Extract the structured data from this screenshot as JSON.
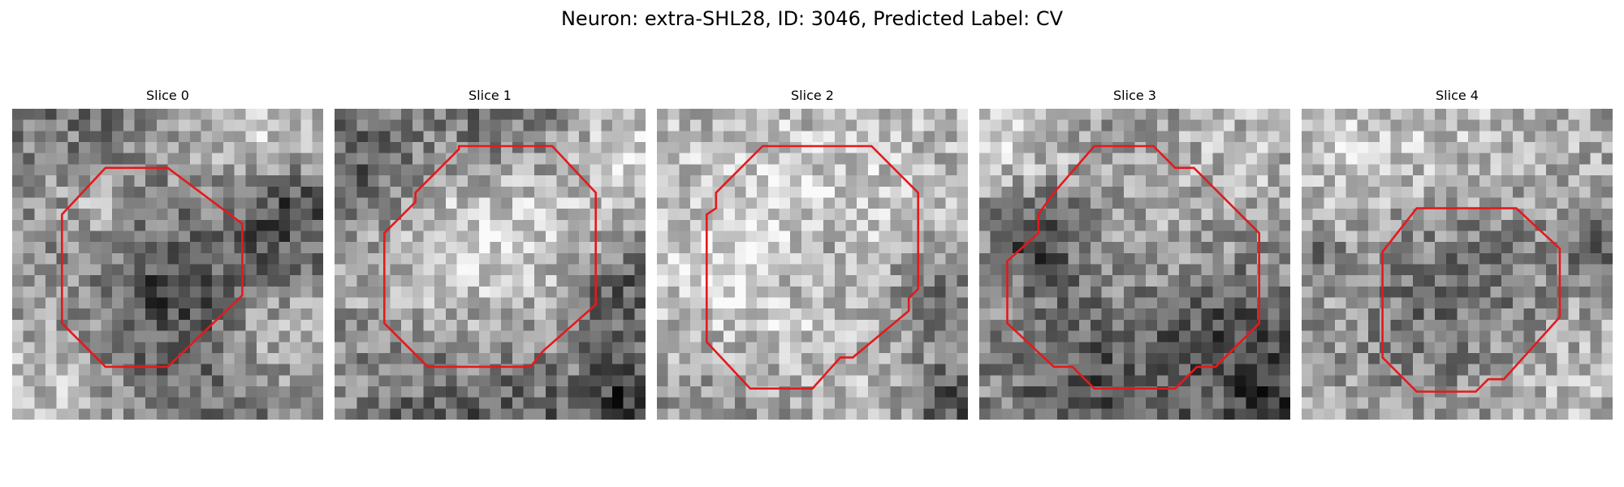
{
  "figure": {
    "title": "Neuron: extra-SHL28, ID: 3046, Predicted Label: CV",
    "contour_color": "#e31a1c",
    "grid_size": 28,
    "panels": [
      {
        "title": "Slice 0",
        "seed": 11,
        "base": 0.6,
        "dark_spots": [
          [
            0.52,
            0.55,
            0.22,
            0.28
          ],
          [
            0.9,
            0.32,
            0.12,
            0.38
          ],
          [
            0.25,
            0.05,
            0.25,
            0.18
          ],
          [
            0.6,
            0.95,
            0.3,
            0.15
          ]
        ],
        "bright_spots": [
          [
            0.3,
            0.3,
            0.14,
            0.25
          ],
          [
            0.8,
            0.08,
            0.2,
            0.25
          ],
          [
            0.8,
            0.72,
            0.14,
            0.2
          ],
          [
            0.15,
            0.92,
            0.2,
            0.2
          ]
        ],
        "contour": [
          [
            0.3,
            0.19
          ],
          [
            0.5,
            0.19
          ],
          [
            0.74,
            0.37
          ],
          [
            0.74,
            0.6
          ],
          [
            0.5,
            0.83
          ],
          [
            0.3,
            0.83
          ],
          [
            0.16,
            0.69
          ],
          [
            0.16,
            0.34
          ]
        ]
      },
      {
        "title": "Slice 1",
        "seed": 23,
        "base": 0.58,
        "dark_spots": [
          [
            0.05,
            0.2,
            0.15,
            0.3
          ],
          [
            0.92,
            0.6,
            0.12,
            0.3
          ],
          [
            0.5,
            0.02,
            0.2,
            0.3
          ],
          [
            0.5,
            0.97,
            0.35,
            0.3
          ],
          [
            0.95,
            0.95,
            0.1,
            0.3
          ]
        ],
        "bright_spots": [
          [
            0.5,
            0.45,
            0.33,
            0.38
          ],
          [
            0.95,
            0.12,
            0.1,
            0.2
          ]
        ],
        "contour": [
          [
            0.4,
            0.12
          ],
          [
            0.7,
            0.12
          ],
          [
            0.84,
            0.27
          ],
          [
            0.84,
            0.63
          ],
          [
            0.67,
            0.78
          ],
          [
            0.63,
            0.83
          ],
          [
            0.3,
            0.83
          ],
          [
            0.16,
            0.69
          ],
          [
            0.16,
            0.4
          ],
          [
            0.26,
            0.3
          ],
          [
            0.26,
            0.27
          ],
          [
            0.4,
            0.13
          ]
        ]
      },
      {
        "title": "Slice 2",
        "seed": 37,
        "base": 0.68,
        "dark_spots": [
          [
            0.5,
            0.5,
            0.08,
            0.18
          ],
          [
            0.9,
            0.6,
            0.15,
            0.25
          ],
          [
            0.95,
            0.95,
            0.1,
            0.35
          ],
          [
            0.2,
            0.92,
            0.2,
            0.15
          ]
        ],
        "bright_spots": [
          [
            0.45,
            0.45,
            0.35,
            0.15
          ],
          [
            0.2,
            0.6,
            0.15,
            0.1
          ]
        ],
        "contour": [
          [
            0.34,
            0.12
          ],
          [
            0.69,
            0.12
          ],
          [
            0.84,
            0.27
          ],
          [
            0.84,
            0.58
          ],
          [
            0.81,
            0.61
          ],
          [
            0.81,
            0.65
          ],
          [
            0.63,
            0.8
          ],
          [
            0.59,
            0.8
          ],
          [
            0.5,
            0.9
          ],
          [
            0.3,
            0.9
          ],
          [
            0.16,
            0.75
          ],
          [
            0.16,
            0.34
          ],
          [
            0.19,
            0.32
          ],
          [
            0.19,
            0.27
          ]
        ]
      },
      {
        "title": "Slice 3",
        "seed": 51,
        "base": 0.6,
        "dark_spots": [
          [
            0.2,
            0.4,
            0.1,
            0.35
          ],
          [
            0.85,
            0.75,
            0.15,
            0.25
          ],
          [
            0.4,
            0.95,
            0.25,
            0.25
          ],
          [
            0.95,
            0.95,
            0.1,
            0.3
          ],
          [
            0.5,
            0.5,
            0.3,
            0.1
          ]
        ],
        "bright_spots": [
          [
            0.1,
            0.1,
            0.15,
            0.2
          ],
          [
            0.85,
            0.15,
            0.15,
            0.15
          ],
          [
            0.5,
            0.4,
            0.2,
            0.15
          ]
        ],
        "contour": [
          [
            0.37,
            0.12
          ],
          [
            0.56,
            0.12
          ],
          [
            0.63,
            0.19
          ],
          [
            0.69,
            0.19
          ],
          [
            0.9,
            0.4
          ],
          [
            0.9,
            0.69
          ],
          [
            0.76,
            0.83
          ],
          [
            0.7,
            0.83
          ],
          [
            0.63,
            0.9
          ],
          [
            0.37,
            0.9
          ],
          [
            0.3,
            0.83
          ],
          [
            0.24,
            0.83
          ],
          [
            0.09,
            0.69
          ],
          [
            0.09,
            0.49
          ],
          [
            0.19,
            0.4
          ],
          [
            0.19,
            0.34
          ],
          [
            0.24,
            0.27
          ]
        ]
      },
      {
        "title": "Slice 4",
        "seed": 67,
        "base": 0.64,
        "dark_spots": [
          [
            0.5,
            0.6,
            0.25,
            0.25
          ],
          [
            0.95,
            0.45,
            0.08,
            0.25
          ],
          [
            0.05,
            0.45,
            0.05,
            0.2
          ]
        ],
        "bright_spots": [
          [
            0.15,
            0.15,
            0.2,
            0.12
          ],
          [
            0.8,
            0.85,
            0.2,
            0.12
          ],
          [
            0.5,
            0.1,
            0.3,
            0.1
          ]
        ],
        "contour": [
          [
            0.37,
            0.32
          ],
          [
            0.69,
            0.32
          ],
          [
            0.83,
            0.45
          ],
          [
            0.83,
            0.67
          ],
          [
            0.65,
            0.87
          ],
          [
            0.6,
            0.87
          ],
          [
            0.56,
            0.91
          ],
          [
            0.37,
            0.91
          ],
          [
            0.26,
            0.8
          ],
          [
            0.26,
            0.46
          ]
        ]
      }
    ]
  }
}
